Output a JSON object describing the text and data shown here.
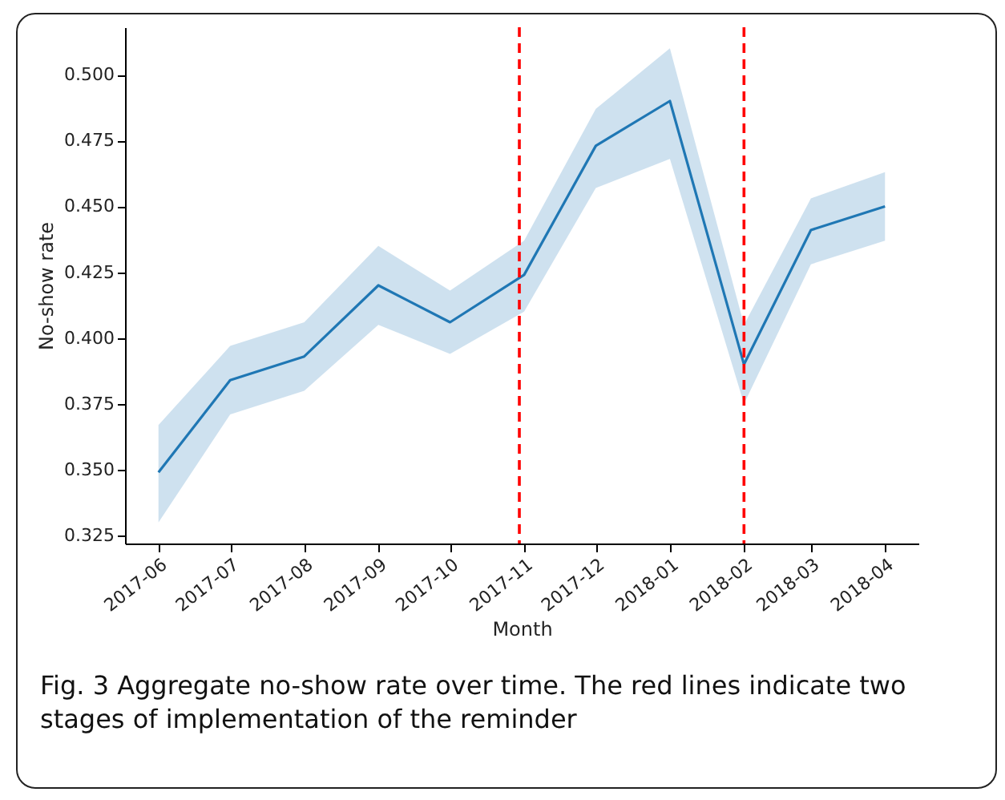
{
  "chart_data": {
    "type": "line",
    "xlabel": "Month",
    "ylabel": "No-show rate",
    "x": [
      "2017-06",
      "2017-07",
      "2017-08",
      "2017-09",
      "2017-10",
      "2017-11",
      "2017-12",
      "2018-01",
      "2018-02",
      "2018-03",
      "2018-04"
    ],
    "series": [
      {
        "color": "#1f77b4",
        "values": [
          0.349,
          0.384,
          0.393,
          0.42,
          0.406,
          0.424,
          0.473,
          0.49,
          0.39,
          0.441,
          0.45
        ],
        "lower": [
          0.33,
          0.371,
          0.38,
          0.405,
          0.394,
          0.41,
          0.457,
          0.468,
          0.375,
          0.428,
          0.437
        ],
        "upper": [
          0.367,
          0.397,
          0.406,
          0.435,
          0.418,
          0.437,
          0.487,
          0.51,
          0.405,
          0.453,
          0.463
        ]
      }
    ],
    "xlim": [
      "2017-05-18",
      "2018-04-15"
    ],
    "xticks": [
      "2017-06",
      "2017-07",
      "2017-08",
      "2017-09",
      "2017-10",
      "2017-11",
      "2017-12",
      "2018-01",
      "2018-02",
      "2018-03",
      "2018-04"
    ],
    "ylim": [
      0.322,
      0.518
    ],
    "yticks": [
      {
        "value": 0.325,
        "label": "0.325"
      },
      {
        "value": 0.35,
        "label": "0.350"
      },
      {
        "value": 0.375,
        "label": "0.375"
      },
      {
        "value": 0.4,
        "label": "0.400"
      },
      {
        "value": 0.425,
        "label": "0.425"
      },
      {
        "value": 0.45,
        "label": "0.450"
      },
      {
        "value": 0.475,
        "label": "0.475"
      },
      {
        "value": 0.5,
        "label": "0.500"
      }
    ],
    "ref_lines": [
      {
        "axis": "x",
        "value": "2017-10-30",
        "color": "#ff0000",
        "line_style": "dashed"
      },
      {
        "axis": "x",
        "value": "2018-02",
        "color": "#ff0000",
        "line_style": "dashed"
      }
    ],
    "grid": false,
    "marker": "none",
    "line_style": "solid",
    "annotations": [
      "Fig. 3 Aggregate no-show rate over time. The red lines indicate two stages of implementation of the reminder"
    ]
  }
}
